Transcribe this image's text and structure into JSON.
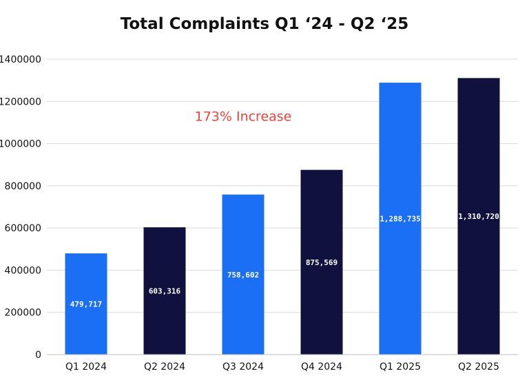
{
  "chart_data": {
    "type": "bar",
    "title": "Total Complaints Q1 ‘24 - Q2 ‘25",
    "categories": [
      "Q1 2024",
      "Q2 2024",
      "Q3 2024",
      "Q4 2024",
      "Q1 2025",
      "Q2 2025"
    ],
    "values": [
      479717,
      603316,
      758602,
      875569,
      1288735,
      1310720
    ],
    "data_labels": [
      "479,717",
      "603,316",
      "758,602",
      "875,569",
      "1,288,735",
      "1,310,720"
    ],
    "bar_colors": [
      "#1a6ff5",
      "#10113f",
      "#1a6ff5",
      "#10113f",
      "#1a6ff5",
      "#10113f"
    ],
    "ylim": [
      0,
      1400000
    ],
    "yticks": [
      0,
      200000,
      400000,
      600000,
      800000,
      1000000,
      1200000,
      1400000
    ],
    "ytick_labels": [
      "0",
      "200000",
      "400000",
      "600000",
      "800000",
      "1000000",
      "1200000",
      "1400000"
    ],
    "grid": true,
    "annotation": {
      "text": "173% Increase",
      "color": "#f0423c",
      "x_category": 2,
      "y_value": 1130000
    }
  }
}
